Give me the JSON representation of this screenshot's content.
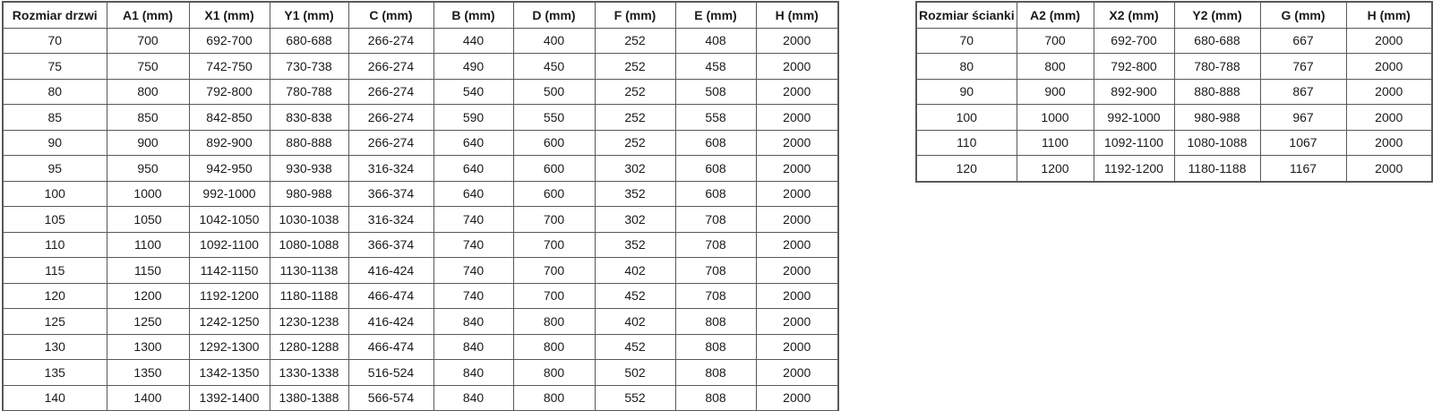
{
  "colors": {
    "background": "#ffffff",
    "table_border": "#595959",
    "text": "#1a1a1a"
  },
  "tables": [
    {
      "name": "door-size-table",
      "columns": [
        "Rozmiar drzwi",
        "A1 (mm)",
        "X1 (mm)",
        "Y1 (mm)",
        "C (mm)",
        "B (mm)",
        "D (mm)",
        "F (mm)",
        "E (mm)",
        "H (mm)"
      ],
      "rows": [
        [
          "70",
          "700",
          "692-700",
          "680-688",
          "266-274",
          "440",
          "400",
          "252",
          "408",
          "2000"
        ],
        [
          "75",
          "750",
          "742-750",
          "730-738",
          "266-274",
          "490",
          "450",
          "252",
          "458",
          "2000"
        ],
        [
          "80",
          "800",
          "792-800",
          "780-788",
          "266-274",
          "540",
          "500",
          "252",
          "508",
          "2000"
        ],
        [
          "85",
          "850",
          "842-850",
          "830-838",
          "266-274",
          "590",
          "550",
          "252",
          "558",
          "2000"
        ],
        [
          "90",
          "900",
          "892-900",
          "880-888",
          "266-274",
          "640",
          "600",
          "252",
          "608",
          "2000"
        ],
        [
          "95",
          "950",
          "942-950",
          "930-938",
          "316-324",
          "640",
          "600",
          "302",
          "608",
          "2000"
        ],
        [
          "100",
          "1000",
          "992-1000",
          "980-988",
          "366-374",
          "640",
          "600",
          "352",
          "608",
          "2000"
        ],
        [
          "105",
          "1050",
          "1042-1050",
          "1030-1038",
          "316-324",
          "740",
          "700",
          "302",
          "708",
          "2000"
        ],
        [
          "110",
          "1100",
          "1092-1100",
          "1080-1088",
          "366-374",
          "740",
          "700",
          "352",
          "708",
          "2000"
        ],
        [
          "115",
          "1150",
          "1142-1150",
          "1130-1138",
          "416-424",
          "740",
          "700",
          "402",
          "708",
          "2000"
        ],
        [
          "120",
          "1200",
          "1192-1200",
          "1180-1188",
          "466-474",
          "740",
          "700",
          "452",
          "708",
          "2000"
        ],
        [
          "125",
          "1250",
          "1242-1250",
          "1230-1238",
          "416-424",
          "840",
          "800",
          "402",
          "808",
          "2000"
        ],
        [
          "130",
          "1300",
          "1292-1300",
          "1280-1288",
          "466-474",
          "840",
          "800",
          "452",
          "808",
          "2000"
        ],
        [
          "135",
          "1350",
          "1342-1350",
          "1330-1338",
          "516-524",
          "840",
          "800",
          "502",
          "808",
          "2000"
        ],
        [
          "140",
          "1400",
          "1392-1400",
          "1380-1388",
          "566-574",
          "840",
          "800",
          "552",
          "808",
          "2000"
        ]
      ]
    },
    {
      "name": "wall-size-table",
      "columns": [
        "Rozmiar ścianki",
        "A2 (mm)",
        "X2 (mm)",
        "Y2 (mm)",
        "G (mm)",
        "H (mm)"
      ],
      "rows": [
        [
          "70",
          "700",
          "692-700",
          "680-688",
          "667",
          "2000"
        ],
        [
          "80",
          "800",
          "792-800",
          "780-788",
          "767",
          "2000"
        ],
        [
          "90",
          "900",
          "892-900",
          "880-888",
          "867",
          "2000"
        ],
        [
          "100",
          "1000",
          "992-1000",
          "980-988",
          "967",
          "2000"
        ],
        [
          "110",
          "1100",
          "1092-1100",
          "1080-1088",
          "1067",
          "2000"
        ],
        [
          "120",
          "1200",
          "1192-1200",
          "1180-1188",
          "1167",
          "2000"
        ]
      ]
    }
  ]
}
